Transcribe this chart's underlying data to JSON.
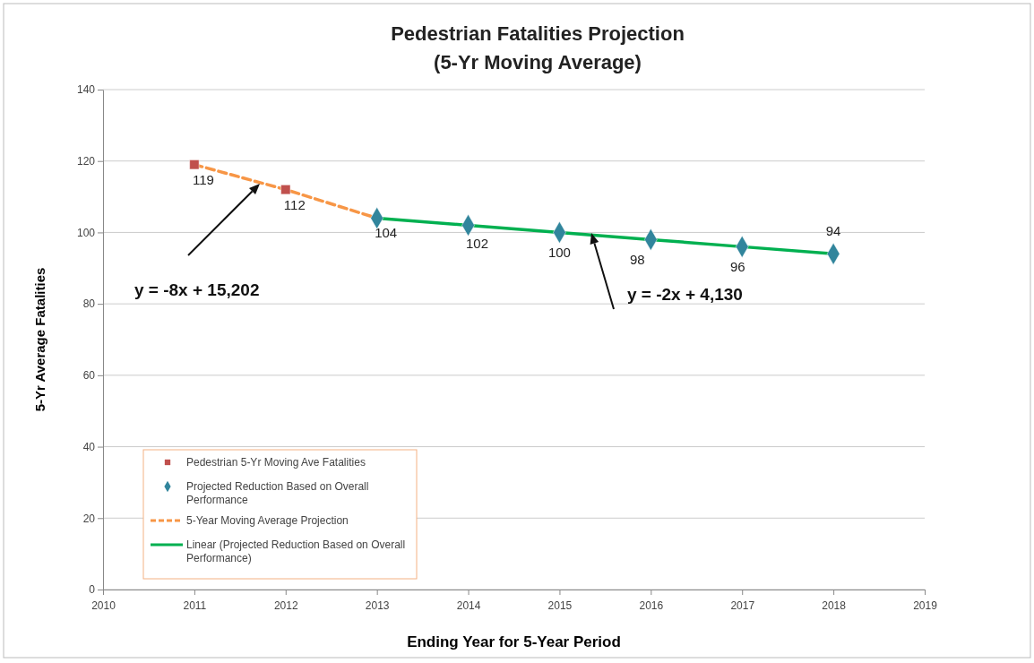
{
  "chart_data": {
    "type": "line",
    "title": "Pedestrian Fatalities Projection",
    "subtitle": "(5-Yr Moving Average)",
    "xlabel": "Ending Year for 5-Year Period",
    "ylabel": "5-Yr Average Fatalities",
    "xlim": [
      2010,
      2019
    ],
    "xticks": [
      2010,
      2011,
      2012,
      2013,
      2014,
      2015,
      2016,
      2017,
      2018,
      2019
    ],
    "ylim": [
      0,
      140
    ],
    "yticks": [
      0,
      20,
      40,
      60,
      80,
      100,
      120,
      140
    ],
    "grid": "y",
    "legend": "bottom left",
    "series": [
      {
        "name": "5-Year Moving Average Projection",
        "type": "line",
        "color": "#f79646",
        "line_style": "dashed",
        "marker": "none",
        "x": [
          2011,
          2012,
          2013
        ],
        "values": [
          119,
          112,
          104
        ]
      },
      {
        "name": "Linear (Projected Reduction Based on Overall Performance)",
        "type": "line",
        "color": "#00b050",
        "line_style": "solid",
        "marker": "none",
        "x": [
          2013,
          2014,
          2015,
          2016,
          2017,
          2018
        ],
        "values": [
          104,
          102,
          100,
          98,
          96,
          94
        ]
      },
      {
        "name": "Pedestrian 5-Yr Moving Ave Fatalities",
        "type": "scatter",
        "color": "#c0504d",
        "marker": "square",
        "x": [
          2011,
          2012
        ],
        "values": [
          119,
          112
        ],
        "value_labels": [
          "119",
          "112"
        ]
      },
      {
        "name": "Projected Reduction Based on Overall Performance",
        "type": "scatter",
        "color": "#31859c",
        "marker": "diamond",
        "x": [
          2013,
          2014,
          2015,
          2016,
          2017,
          2018
        ],
        "values": [
          104,
          102,
          100,
          98,
          96,
          94
        ],
        "value_labels": [
          "104",
          "102",
          "100",
          "98",
          "96",
          "94"
        ]
      }
    ],
    "annotations": [
      "y = -8x + 15,202",
      "y = -2x + 4,130"
    ]
  }
}
